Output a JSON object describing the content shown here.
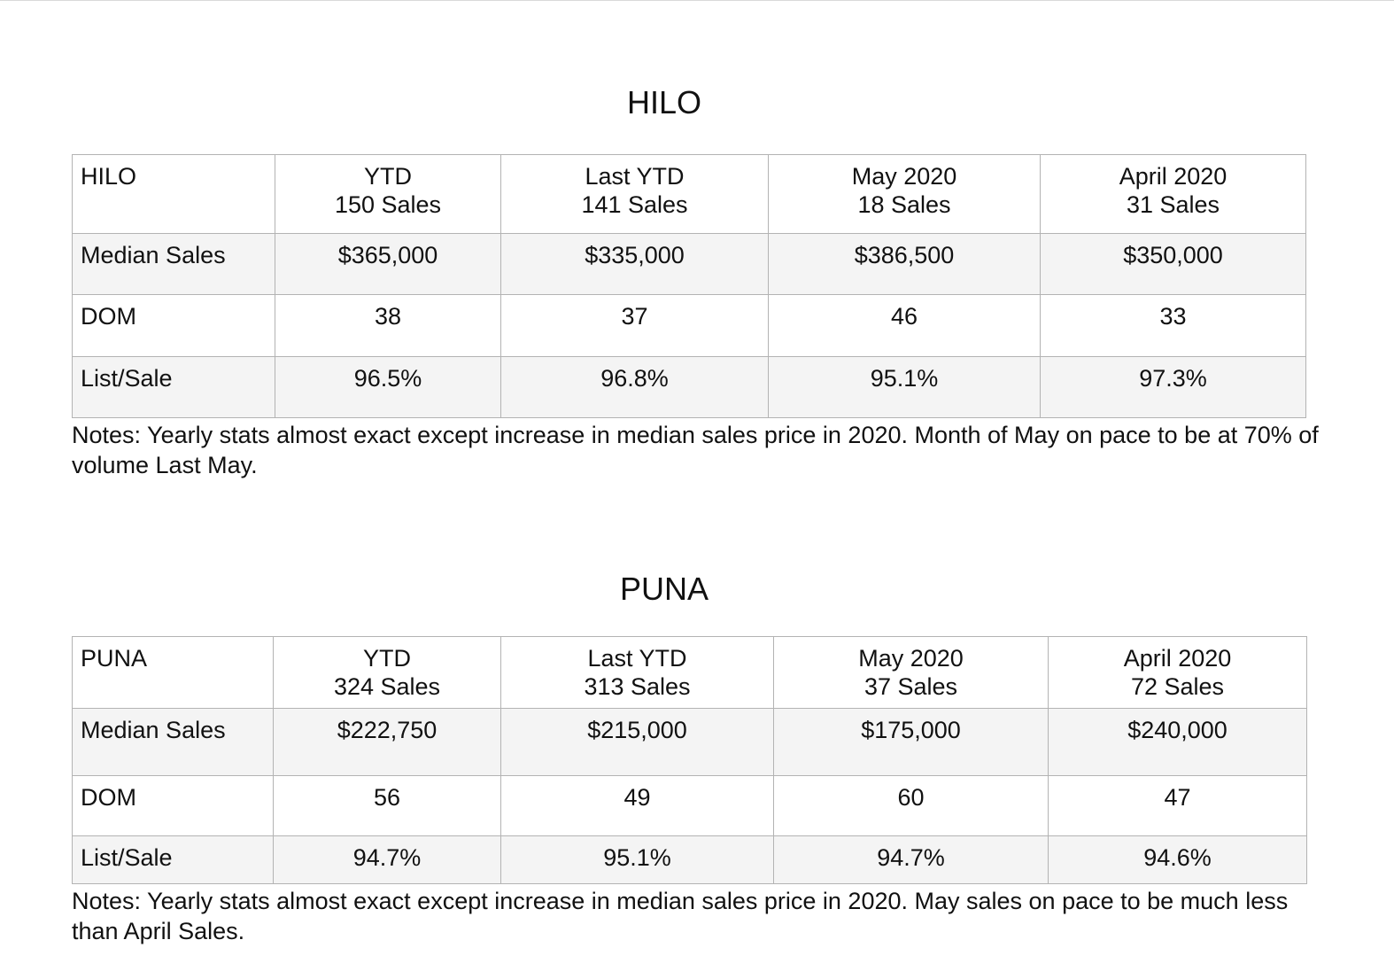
{
  "hilo": {
    "title": "HILO",
    "header": {
      "label": "HILO",
      "columns": [
        {
          "line1": "YTD",
          "line2": "150 Sales"
        },
        {
          "line1": "Last YTD",
          "line2": "141 Sales"
        },
        {
          "line1": "May 2020",
          "line2": "18 Sales"
        },
        {
          "line1": "April 2020",
          "line2": "31 Sales"
        }
      ]
    },
    "rows": [
      {
        "label": "Median Sales",
        "values": [
          "$365,000",
          "$335,000",
          "$386,500",
          "$350,000"
        ]
      },
      {
        "label": "DOM",
        "values": [
          "38",
          "37",
          "46",
          "33"
        ]
      },
      {
        "label": "List/Sale",
        "values": [
          "96.5%",
          "96.8%",
          "95.1%",
          "97.3%"
        ]
      }
    ],
    "notes": "Notes: Yearly stats almost exact except increase in median sales price in 2020. Month of May on pace to be at 70% of volume Last May."
  },
  "puna": {
    "title": "PUNA",
    "header": {
      "label": "PUNA",
      "columns": [
        {
          "line1": "YTD",
          "line2": "324 Sales"
        },
        {
          "line1": "Last YTD",
          "line2": "313 Sales"
        },
        {
          "line1": "May 2020",
          "line2": "37 Sales"
        },
        {
          "line1": "April 2020",
          "line2": "72 Sales"
        }
      ]
    },
    "rows": [
      {
        "label": "Median Sales",
        "values": [
          "$222,750",
          "$215,000",
          "$175,000",
          "$240,000"
        ]
      },
      {
        "label": "DOM",
        "values": [
          "56",
          "49",
          "60",
          "47"
        ]
      },
      {
        "label": "List/Sale",
        "values": [
          "94.7%",
          "95.1%",
          "94.7%",
          "94.6%"
        ]
      }
    ],
    "notes": "Notes: Yearly stats almost exact except increase in median sales price in 2020. May sales on pace to be much less than April Sales."
  }
}
